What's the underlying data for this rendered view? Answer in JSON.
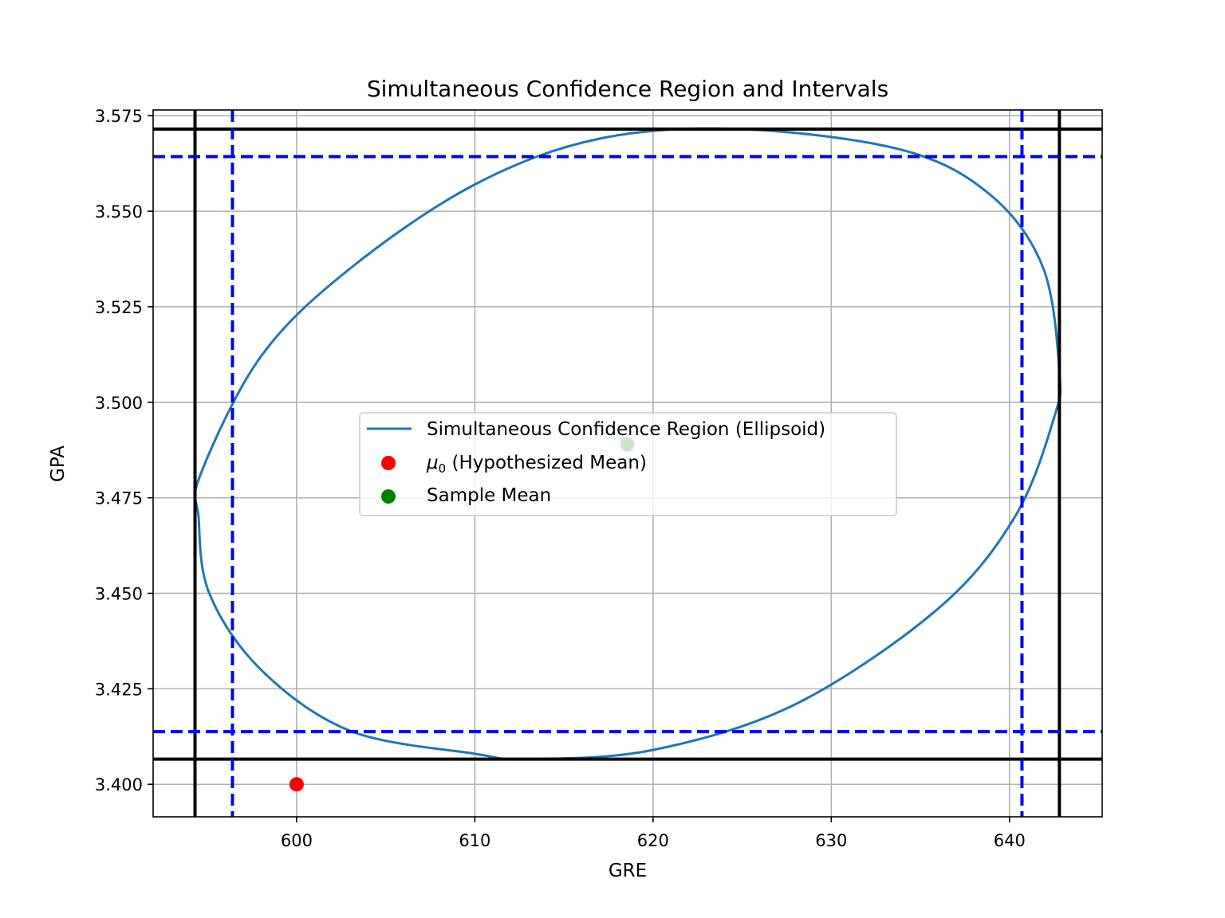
{
  "chart_data": {
    "type": "scatter",
    "title": "Simultaneous Confidence Region and Intervals",
    "xlabel": "GRE",
    "ylabel": "GPA",
    "xlim": [
      591.95,
      645.2
    ],
    "ylim": [
      3.3915,
      3.5765
    ],
    "xticks": [
      600,
      610,
      620,
      630,
      640
    ],
    "xtick_labels": [
      "600",
      "610",
      "620",
      "630",
      "640"
    ],
    "yticks": [
      3.4,
      3.425,
      3.45,
      3.475,
      3.5,
      3.525,
      3.55,
      3.575
    ],
    "ytick_labels": [
      "3.400",
      "3.425",
      "3.450",
      "3.475",
      "3.500",
      "3.525",
      "3.550",
      "3.575"
    ],
    "grid": true,
    "legend_position": "center",
    "ellipse": {
      "name": "Simultaneous Confidence Region (Ellipsoid)",
      "color": "#1f77b4",
      "center": [
        618.55,
        3.489
      ],
      "points": [
        [
          642.8,
          3.508
        ],
        [
          641.9,
          3.535
        ],
        [
          639.0,
          3.554
        ],
        [
          634.0,
          3.566
        ],
        [
          624.9,
          3.5715
        ],
        [
          617.0,
          3.569
        ],
        [
          610.0,
          3.557
        ],
        [
          603.0,
          3.535
        ],
        [
          598.0,
          3.512
        ],
        [
          594.6,
          3.481
        ],
        [
          594.5,
          3.47
        ],
        [
          595.1,
          3.45
        ],
        [
          598.0,
          3.43
        ],
        [
          603.0,
          3.414
        ],
        [
          610.0,
          3.408
        ],
        [
          612.9,
          3.4066
        ],
        [
          620.0,
          3.409
        ],
        [
          628.0,
          3.421
        ],
        [
          636.0,
          3.446
        ],
        [
          640.3,
          3.47
        ],
        [
          642.5,
          3.496
        ]
      ]
    },
    "simultaneous_intervals": {
      "color": "#000000",
      "style": "solid",
      "gre": [
        594.3,
        642.8
      ],
      "gpa": [
        3.4066,
        3.5715
      ]
    },
    "bonferroni_intervals": {
      "color": "#0000ff",
      "style": "dashed",
      "gre": [
        596.4,
        640.7
      ],
      "gpa": [
        3.4138,
        3.5643
      ]
    },
    "points": [
      {
        "name": "μ₀ (Hypothesized Mean)",
        "x": 600,
        "y": 3.4,
        "color": "#ff0000"
      },
      {
        "name": "Sample Mean",
        "x": 618.55,
        "y": 3.489,
        "color": "#008000"
      }
    ]
  },
  "legend": {
    "region_label": "Simultaneous Confidence Region (Ellipsoid)",
    "mu0_symbol": "μ",
    "mu0_subscript": "0",
    "mu0_text": " (Hypothesized Mean)",
    "sample_label": "Sample Mean"
  }
}
